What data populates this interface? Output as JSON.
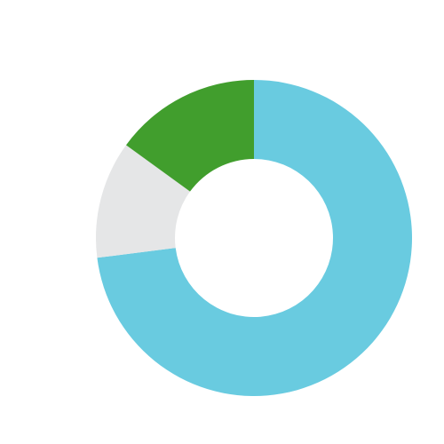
{
  "chart_data": {
    "type": "donut",
    "categories": [
      null,
      null,
      null
    ],
    "values": [
      73,
      12,
      15
    ],
    "colors": [
      "#69cbe0",
      "#e5e6e7",
      "#419e2d"
    ]
  }
}
